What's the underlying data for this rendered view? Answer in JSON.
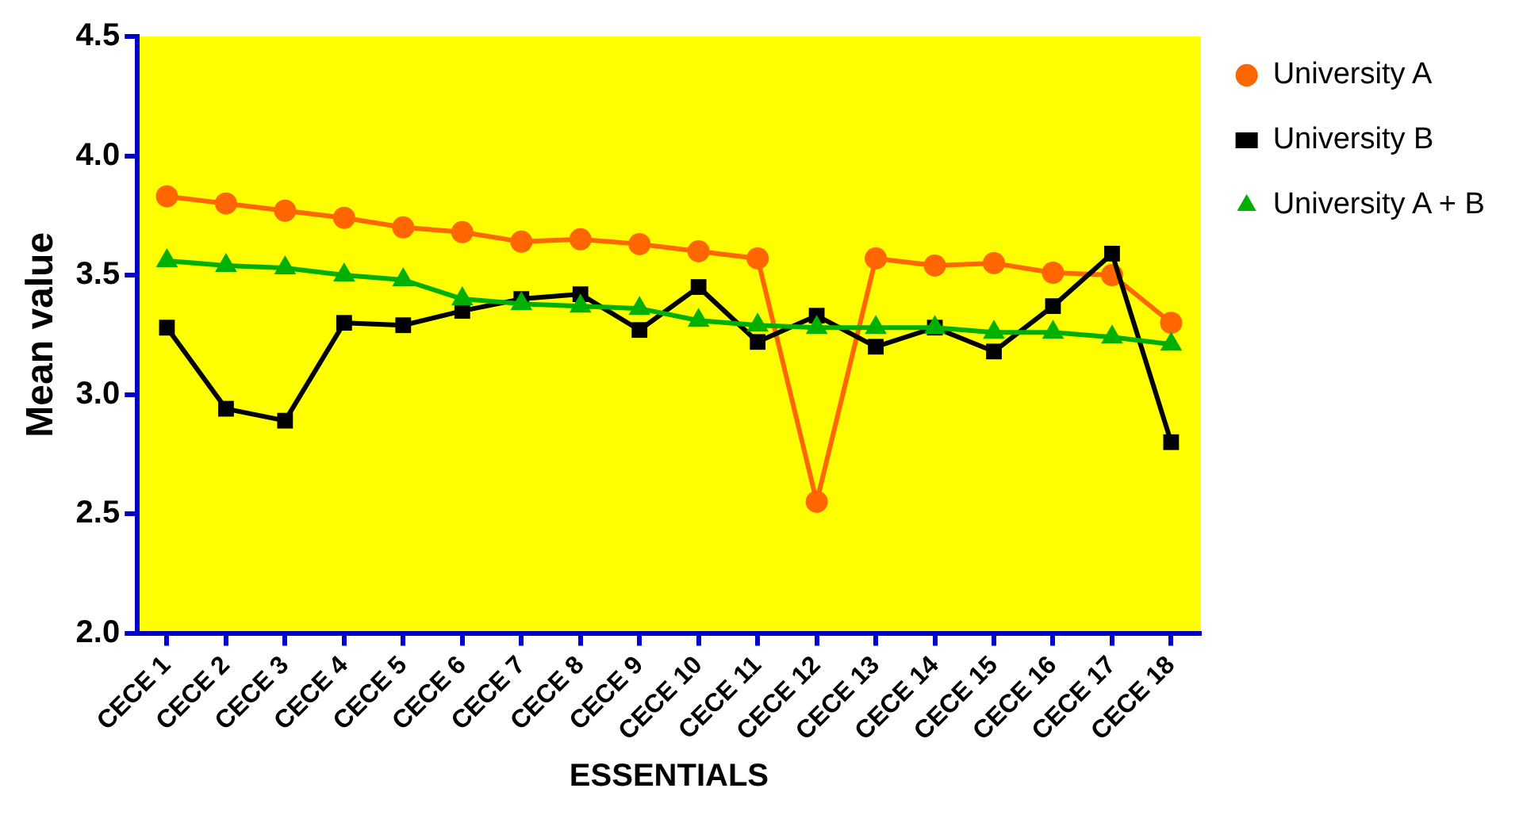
{
  "chart_data": {
    "type": "line",
    "xlabel": "ESSENTIALS",
    "ylabel": "Mean value",
    "categories": [
      "CECE 1",
      "CECE 2",
      "CECE 3",
      "CECE 4",
      "CECE 5",
      "CECE 6",
      "CECE 7",
      "CECE 8",
      "CECE 9",
      "CECE 10",
      "CECE 11",
      "CECE 12",
      "CECE 13",
      "CECE 14",
      "CECE 15",
      "CECE 16",
      "CECE 17",
      "CECE 18"
    ],
    "series": [
      {
        "name": "University A",
        "color": "#ff6600",
        "marker": "circle",
        "values": [
          3.83,
          3.8,
          3.77,
          3.74,
          3.7,
          3.68,
          3.64,
          3.65,
          3.63,
          3.6,
          3.57,
          2.55,
          3.57,
          3.54,
          3.55,
          3.51,
          3.5,
          3.3
        ]
      },
      {
        "name": "University B",
        "color": "#000000",
        "marker": "square",
        "values": [
          3.28,
          2.94,
          2.89,
          3.3,
          3.29,
          3.35,
          3.4,
          3.42,
          3.27,
          3.45,
          3.22,
          3.33,
          3.2,
          3.28,
          3.18,
          3.37,
          3.59,
          2.8
        ]
      },
      {
        "name": "University A + B",
        "color": "#00b000",
        "marker": "triangle",
        "values": [
          3.56,
          3.54,
          3.53,
          3.5,
          3.48,
          3.4,
          3.38,
          3.37,
          3.36,
          3.31,
          3.29,
          3.28,
          3.28,
          3.28,
          3.26,
          3.26,
          3.24,
          3.21
        ]
      }
    ],
    "ylim": [
      2.0,
      4.5
    ],
    "yticks": [
      {
        "value": 2.0,
        "label": "2.0"
      },
      {
        "value": 2.5,
        "label": "2.5"
      },
      {
        "value": 3.0,
        "label": "3.0"
      },
      {
        "value": 3.5,
        "label": "3.5"
      },
      {
        "value": 4.0,
        "label": "4.0"
      },
      {
        "value": 4.5,
        "label": "4.5"
      }
    ],
    "grid": false,
    "legend": "top right",
    "line_style": "solid"
  }
}
